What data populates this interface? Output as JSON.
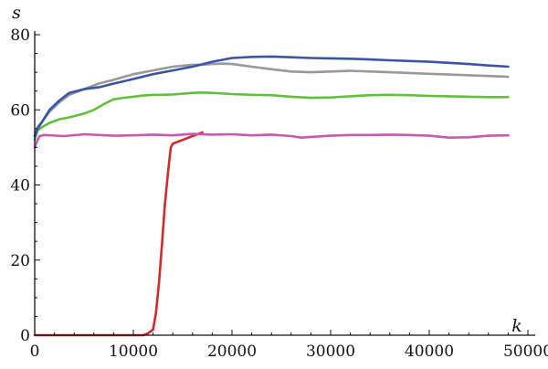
{
  "chart_data": {
    "type": "line",
    "xlabel": "k",
    "ylabel": "s",
    "xlim": [
      0,
      50000
    ],
    "ylim": [
      0,
      80
    ],
    "x_ticks": [
      0,
      10000,
      20000,
      30000,
      40000,
      50000
    ],
    "y_ticks": [
      0,
      20,
      40,
      60,
      80
    ],
    "grid": false,
    "series": [
      {
        "color": "#d42a2a",
        "x": [
          0,
          4000,
          8000,
          10000,
          11000,
          11500,
          12000,
          12300,
          12600,
          12900,
          13200,
          13500,
          13800,
          14000,
          14500,
          15000,
          15500,
          16000,
          16500,
          17000
        ],
        "y": [
          0,
          0,
          0,
          0,
          0,
          0.5,
          1.5,
          6,
          14,
          24,
          35,
          43,
          50,
          51,
          51.5,
          52,
          52.5,
          53,
          53.5,
          54
        ]
      },
      {
        "color": "#c659b3",
        "x": [
          0,
          300,
          500,
          1000,
          3000,
          5000,
          8000,
          10000,
          12000,
          14000,
          16000,
          18000,
          20000,
          22000,
          24000,
          26000,
          27000,
          28000,
          30000,
          32000,
          34000,
          36000,
          38000,
          40000,
          42000,
          44000,
          46000,
          48000
        ],
        "y": [
          50,
          52,
          53,
          53.3,
          53,
          53.5,
          53.1,
          53.2,
          53.4,
          53.2,
          53.6,
          53.4,
          53.5,
          53.2,
          53.4,
          53,
          52.6,
          52.8,
          53.1,
          53.3,
          53.3,
          53.4,
          53.3,
          53.1,
          52.6,
          52.7,
          53.1,
          53.2
        ]
      },
      {
        "color": "#62c040",
        "x": [
          0,
          300,
          800,
          1500,
          2500,
          3500,
          5000,
          6000,
          7000,
          8000,
          9000,
          10000,
          11000,
          12000,
          13000,
          14000,
          15000,
          16000,
          17000,
          18000,
          20000,
          22000,
          24000,
          26000,
          28000,
          30000,
          32000,
          34000,
          36000,
          38000,
          40000,
          42000,
          44000,
          46000,
          48000
        ],
        "y": [
          52,
          54.5,
          55.5,
          56.5,
          57.5,
          58,
          59,
          60,
          61.5,
          62.8,
          63.2,
          63.5,
          63.8,
          64,
          64,
          64.1,
          64.3,
          64.5,
          64.6,
          64.5,
          64.2,
          64,
          63.9,
          63.5,
          63.2,
          63.3,
          63.6,
          63.9,
          64,
          63.9,
          63.7,
          63.6,
          63.5,
          63.4,
          63.4
        ]
      },
      {
        "color": "#999999",
        "x": [
          0,
          300,
          800,
          1500,
          2500,
          3500,
          5000,
          6500,
          8000,
          10000,
          12000,
          14000,
          16000,
          17000,
          18000,
          19000,
          20000,
          22000,
          24000,
          26000,
          28000,
          30000,
          32000,
          34000,
          36000,
          38000,
          40000,
          42000,
          44000,
          46000,
          48000
        ],
        "y": [
          53,
          55.5,
          57,
          59.5,
          62,
          64,
          65.5,
          67,
          68,
          69.5,
          70.5,
          71.5,
          72,
          72,
          72.2,
          72.3,
          72.2,
          71.5,
          70.8,
          70.2,
          70,
          70.2,
          70.4,
          70.2,
          70,
          69.8,
          69.6,
          69.4,
          69.2,
          69,
          68.8
        ]
      },
      {
        "color": "#3a55a8",
        "x": [
          0,
          300,
          800,
          1500,
          2500,
          3500,
          5000,
          6500,
          8000,
          10000,
          12000,
          14000,
          16000,
          18000,
          20000,
          22000,
          24000,
          26000,
          28000,
          30000,
          32000,
          34000,
          36000,
          38000,
          40000,
          42000,
          44000,
          46000,
          48000
        ],
        "y": [
          53,
          55,
          57,
          60,
          62.5,
          64.5,
          65.5,
          66,
          67,
          68.2,
          69.5,
          70.5,
          71.5,
          72.8,
          73.8,
          74.1,
          74.2,
          74,
          73.8,
          73.7,
          73.6,
          73.4,
          73.2,
          73,
          72.8,
          72.5,
          72.2,
          71.8,
          71.5
        ]
      }
    ]
  }
}
